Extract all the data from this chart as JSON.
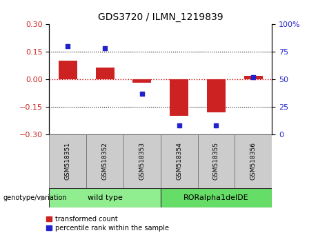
{
  "title": "GDS3720 / ILMN_1219839",
  "samples": [
    "GSM518351",
    "GSM518352",
    "GSM518353",
    "GSM518354",
    "GSM518355",
    "GSM518356"
  ],
  "red_bars": [
    0.1,
    0.065,
    -0.018,
    -0.2,
    -0.18,
    0.018
  ],
  "blue_dots": [
    80,
    78,
    37,
    8,
    8,
    52
  ],
  "ylim_left": [
    -0.3,
    0.3
  ],
  "ylim_right": [
    0,
    100
  ],
  "yticks_left": [
    -0.3,
    -0.15,
    0,
    0.15,
    0.3
  ],
  "yticks_right": [
    0,
    25,
    50,
    75,
    100
  ],
  "hlines": [
    0.15,
    -0.15
  ],
  "bar_color": "#CC2222",
  "dot_color": "#2222CC",
  "bar_width": 0.5,
  "legend_entries": [
    "transformed count",
    "percentile rank within the sample"
  ],
  "zero_line_color": "#CC0000",
  "tick_label_color_left": "#CC2222",
  "tick_label_color_right": "#2222CC",
  "wt_color": "#90EE90",
  "ror_color": "#66DD66",
  "sample_box_color": "#CCCCCC",
  "wt_label": "wild type",
  "ror_label": "RORalpha1delDE",
  "genotype_label": "genotype/variation"
}
